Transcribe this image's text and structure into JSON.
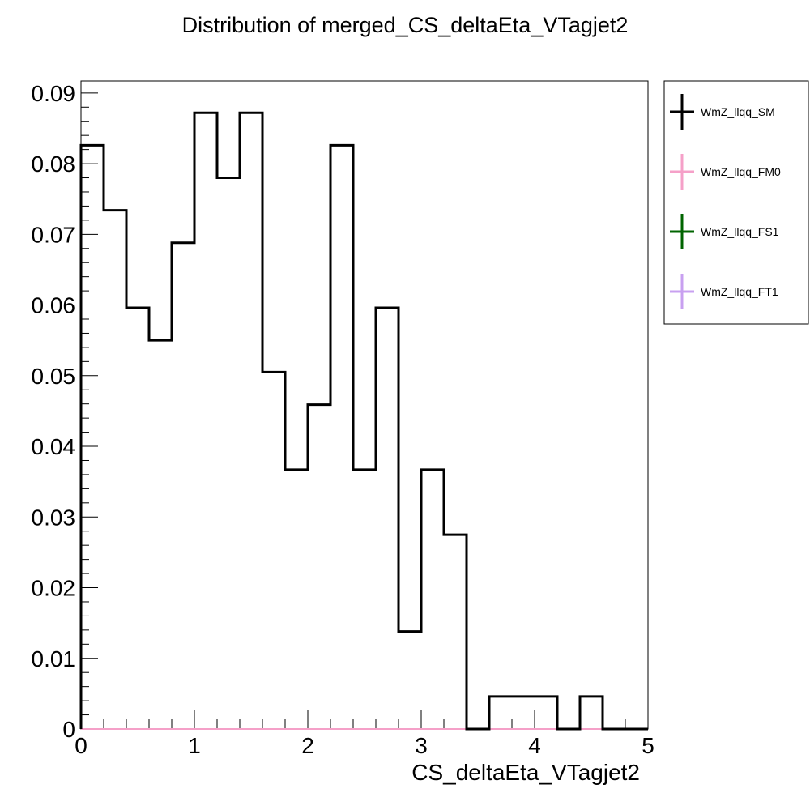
{
  "chart_data": {
    "type": "histogram",
    "title": "Distribution of merged_CS_deltaEta_VTagjet2",
    "xlabel": "CS_deltaEta_VTagjet2",
    "ylabel": "",
    "xlim": [
      0,
      5
    ],
    "ylim": [
      0,
      0.0917
    ],
    "bin_width": 0.2,
    "x_ticks": [
      "0",
      "1",
      "2",
      "3",
      "4",
      "5"
    ],
    "y_ticks": [
      "0",
      "0.01",
      "0.02",
      "0.03",
      "0.04",
      "0.05",
      "0.06",
      "0.07",
      "0.08",
      "0.09"
    ],
    "grid": false,
    "legend_position": "right",
    "series": [
      {
        "name": "WmZ_llqq_SM",
        "color": "#000000",
        "bin_edges": [
          0,
          0.2,
          0.4,
          0.6,
          0.8,
          1.0,
          1.2,
          1.4,
          1.6,
          1.8,
          2.0,
          2.2,
          2.4,
          2.6,
          2.8,
          3.0,
          3.2,
          3.4,
          3.6,
          3.8,
          4.0,
          4.2,
          4.4,
          4.6,
          4.8,
          5.0
        ],
        "values": [
          0.0826,
          0.0734,
          0.0596,
          0.055,
          0.0688,
          0.0872,
          0.078,
          0.0872,
          0.0505,
          0.0367,
          0.0459,
          0.0826,
          0.0367,
          0.0596,
          0.0138,
          0.0367,
          0.0275,
          0.0,
          0.0046,
          0.0046,
          0.0046,
          0.0,
          0.0046,
          0.0,
          0.0
        ]
      },
      {
        "name": "WmZ_llqq_FM0",
        "color": "#f5a0c8",
        "values": [
          0,
          0,
          0,
          0,
          0,
          0,
          0,
          0,
          0,
          0,
          0,
          0,
          0,
          0,
          0,
          0,
          0,
          0,
          0,
          0,
          0,
          0,
          0,
          0,
          0
        ]
      },
      {
        "name": "WmZ_llqq_FS1",
        "color": "#006400",
        "values": [
          0,
          0,
          0,
          0,
          0,
          0,
          0,
          0,
          0,
          0,
          0,
          0,
          0,
          0,
          0,
          0,
          0,
          0,
          0,
          0,
          0,
          0,
          0,
          0,
          0
        ]
      },
      {
        "name": "WmZ_llqq_FT1",
        "color": "#c8a0f0",
        "values": [
          0,
          0,
          0,
          0,
          0,
          0,
          0,
          0,
          0,
          0,
          0,
          0,
          0,
          0,
          0,
          0,
          0,
          0,
          0,
          0,
          0,
          0,
          0,
          0,
          0
        ]
      }
    ]
  }
}
